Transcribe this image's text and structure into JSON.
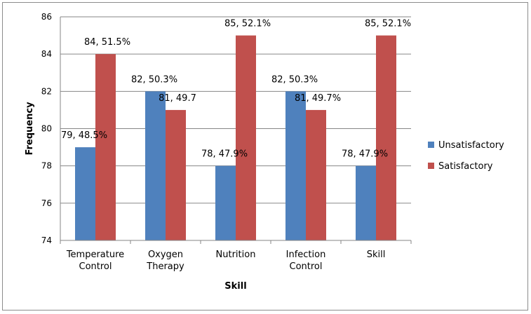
{
  "chart_data": {
    "type": "bar",
    "title": "",
    "xlabel": "Skill",
    "ylabel": "Frequency",
    "ylim": [
      74,
      86
    ],
    "yticks": [
      74,
      76,
      78,
      80,
      82,
      84,
      86
    ],
    "grid": true,
    "legend_position": "right",
    "categories": [
      [
        "Temperature",
        "Control"
      ],
      [
        "Oxygen",
        "Therapy"
      ],
      [
        "Nutrition"
      ],
      [
        "Infection",
        "Control"
      ],
      [
        "Skill"
      ]
    ],
    "series": [
      {
        "name": "Unsatisfactory",
        "color": "#4f81bd",
        "values": [
          79,
          82,
          78,
          82,
          78
        ],
        "labels": [
          "79, 48.5%",
          "82, 50.3%",
          "78, 47.9%",
          "82, 50.3%",
          "78, 47.9%"
        ]
      },
      {
        "name": "Satisfactory",
        "color": "#c0504d",
        "values": [
          84,
          81,
          85,
          81,
          85
        ],
        "labels": [
          "84, 51.5%",
          "81, 49.7",
          "85, 52.1%",
          "81, 49.7%",
          "85, 52.1%"
        ]
      }
    ]
  }
}
